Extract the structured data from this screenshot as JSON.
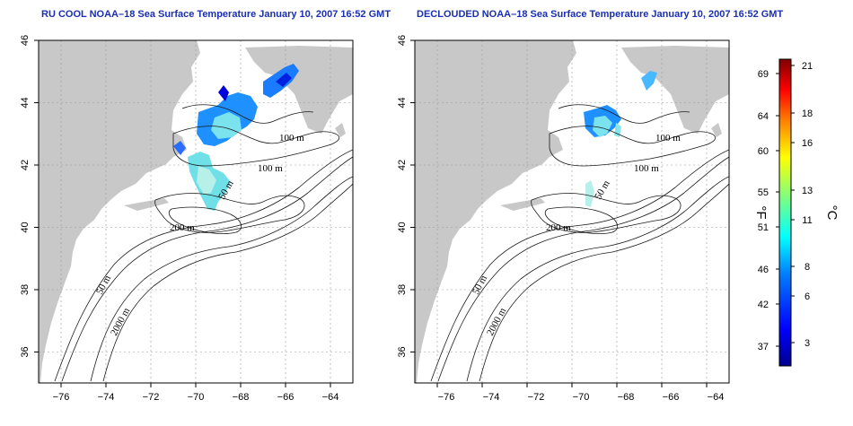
{
  "maps": [
    {
      "id": "left",
      "title": "RU COOL NOAA–18 Sea Surface Temperature January 10, 2007 16:52 GMT",
      "contour_labels": [
        "100 m",
        "100 m",
        "50 m",
        "200 m",
        "50 m",
        "2000 m"
      ]
    },
    {
      "id": "right",
      "title": "DECLOUDED NOAA–18 Sea Surface Temperature January 10, 2007 16:52 GMT",
      "contour_labels": [
        "100 m",
        "100 m",
        "50 m",
        "200 m",
        "50 m",
        "2000 m"
      ]
    }
  ],
  "axes": {
    "longitude_ticks": [
      "−76",
      "−74",
      "−72",
      "−70",
      "−68",
      "−66",
      "−64"
    ],
    "latitude_ticks": [
      "36",
      "38",
      "40",
      "42",
      "44",
      "46"
    ],
    "lon_range": [
      -77,
      -63
    ],
    "lat_range": [
      35,
      46
    ]
  },
  "colorbar": {
    "fahrenheit_label": "°F",
    "celsius_label": "°C",
    "fahrenheit_ticks": [
      "37",
      "42",
      "46",
      "51",
      "55",
      "60",
      "64",
      "69"
    ],
    "celsius_ticks": [
      "3",
      "6",
      "8",
      "11",
      "13",
      "16",
      "18",
      "21"
    ],
    "range_c": [
      1,
      22
    ],
    "colors": [
      "#00008f",
      "#0000ff",
      "#007fff",
      "#00ffff",
      "#7fff7f",
      "#ffff00",
      "#ff7f00",
      "#ff0000",
      "#7f0000"
    ]
  }
}
